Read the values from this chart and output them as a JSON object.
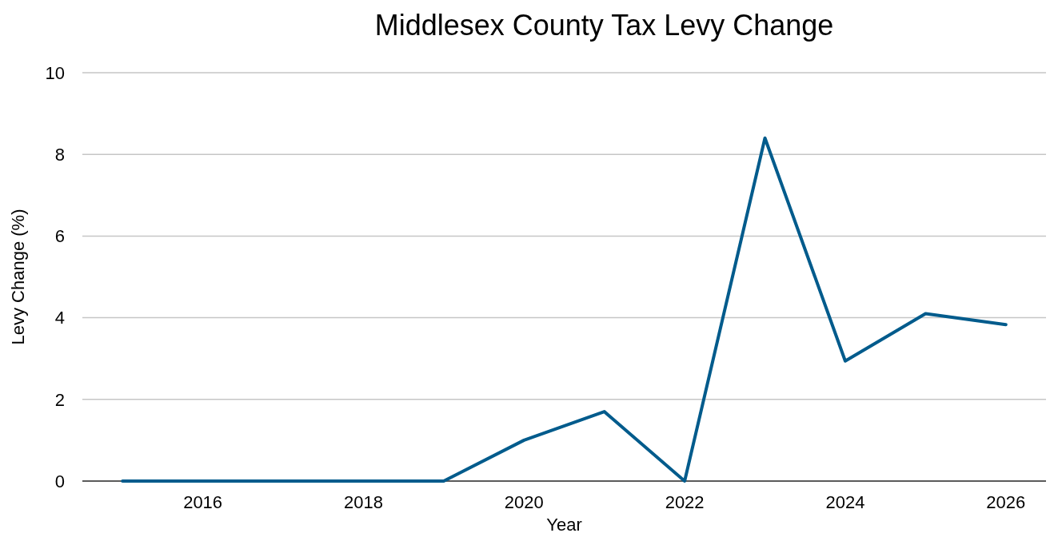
{
  "chart_data": {
    "type": "line",
    "title": "Middlesex County Tax Levy Change",
    "xlabel": "Year",
    "ylabel": "Levy Change (%)",
    "x": [
      2015,
      2016,
      2017,
      2018,
      2019,
      2020,
      2021,
      2022,
      2023,
      2024,
      2025,
      2026
    ],
    "series": [
      {
        "color": "#005b8c",
        "values": [
          0,
          0,
          0,
          0,
          0,
          1.0,
          1.7,
          0,
          8.4,
          2.94,
          4.1,
          3.83
        ]
      }
    ],
    "xlim": [
      2014.5,
      2026.5
    ],
    "xticks": [
      2016,
      2018,
      2020,
      2022,
      2024,
      2026
    ],
    "ylim": [
      0,
      10
    ],
    "yticks": [
      0,
      2,
      4,
      6,
      8,
      10
    ],
    "grid": "y",
    "marker": "none",
    "line_style": "solid"
  }
}
